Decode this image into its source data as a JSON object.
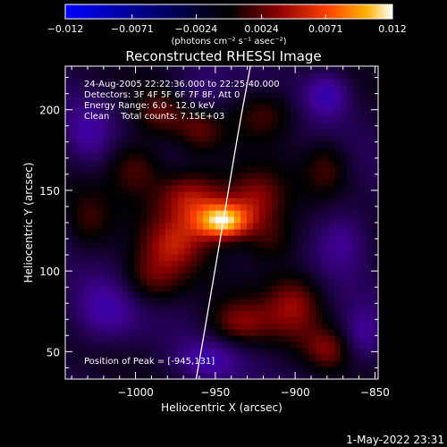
{
  "chart_data": {
    "type": "heatmap",
    "title": "Reconstructed RHESSI Image",
    "xlabel": "Heliocentric X (arcsec)",
    "ylabel": "Heliocentric Y (arcsec)",
    "xlim": [
      -1044,
      -848
    ],
    "ylim": [
      33,
      227
    ],
    "xticks": [
      -1000,
      -950,
      -900,
      -850
    ],
    "xtick_labels": [
      "−1000",
      "−950",
      "−900",
      "−850"
    ],
    "yticks": [
      50,
      100,
      150,
      200
    ],
    "ytick_labels": [
      "50",
      "100",
      "150",
      "200"
    ],
    "colorbar": {
      "range": [
        -0.012,
        0.012
      ],
      "ticks": [
        -0.012,
        -0.0071,
        -0.0024,
        0.0024,
        0.0071,
        0.012
      ],
      "tick_labels": [
        "−0.012",
        "−0.0071",
        "−0.0024",
        "0.0024",
        "0.0071",
        "0.012"
      ],
      "unit_label": "(photons cm⁻² s⁻¹ asec⁻²)"
    },
    "annotations": {
      "time_range": "24-Aug-2005 22:22:36.000 to 22:25:40.000",
      "detectors": "Detectors: 3F 4F 5F 6F 7F 8F, Att 0",
      "energy_range": "Energy Range: 6.0 - 12.0 keV",
      "clean_line": "Clean    Total counts: 7.15E+03",
      "peak": "Position of Peak = [-945,131]"
    },
    "peak": {
      "x": -945,
      "y": 131,
      "value": 0.012
    },
    "sources": [
      {
        "x": -945,
        "y": 131,
        "amp": 0.0125,
        "sx": 12,
        "sy": 8
      },
      {
        "x": -965,
        "y": 146,
        "amp": 0.0075,
        "sx": 16,
        "sy": 12
      },
      {
        "x": -925,
        "y": 145,
        "amp": 0.0055,
        "sx": 13,
        "sy": 12
      },
      {
        "x": -975,
        "y": 118,
        "amp": 0.0055,
        "sx": 14,
        "sy": 12
      },
      {
        "x": -915,
        "y": 120,
        "amp": 0.004,
        "sx": 12,
        "sy": 11
      },
      {
        "x": -990,
        "y": 95,
        "amp": 0.0045,
        "sx": 14,
        "sy": 12
      },
      {
        "x": -900,
        "y": 80,
        "amp": 0.0055,
        "sx": 13,
        "sy": 15
      },
      {
        "x": -935,
        "y": 68,
        "amp": 0.005,
        "sx": 14,
        "sy": 10
      },
      {
        "x": -880,
        "y": 52,
        "amp": 0.004,
        "sx": 10,
        "sy": 9
      },
      {
        "x": -1000,
        "y": 165,
        "amp": 0.0045,
        "sx": 12,
        "sy": 12
      },
      {
        "x": -985,
        "y": 198,
        "amp": 0.004,
        "sx": 12,
        "sy": 10
      },
      {
        "x": -960,
        "y": 188,
        "amp": 0.0035,
        "sx": 10,
        "sy": 10
      },
      {
        "x": -918,
        "y": 198,
        "amp": 0.004,
        "sx": 14,
        "sy": 11
      },
      {
        "x": -880,
        "y": 165,
        "amp": 0.0035,
        "sx": 10,
        "sy": 12
      },
      {
        "x": -1030,
        "y": 130,
        "amp": 0.003,
        "sx": 10,
        "sy": 14
      },
      {
        "x": -1020,
        "y": 75,
        "amp": -0.0045,
        "sx": 15,
        "sy": 14
      },
      {
        "x": -1030,
        "y": 185,
        "amp": -0.0035,
        "sx": 10,
        "sy": 14
      },
      {
        "x": -870,
        "y": 120,
        "amp": -0.004,
        "sx": 12,
        "sy": 15
      },
      {
        "x": -880,
        "y": 210,
        "amp": -0.005,
        "sx": 10,
        "sy": 10
      },
      {
        "x": -955,
        "y": 45,
        "amp": -0.004,
        "sx": 14,
        "sy": 9
      },
      {
        "x": -960,
        "y": 210,
        "amp": -0.003,
        "sx": 12,
        "sy": 10
      },
      {
        "x": -858,
        "y": 60,
        "amp": -0.0035,
        "sx": 8,
        "sy": 12
      }
    ],
    "limb_curve": [
      [
        -962,
        33
      ],
      [
        -952,
        90
      ],
      [
        -945,
        131
      ],
      [
        -935,
        190
      ],
      [
        -928,
        227
      ]
    ],
    "grid": false
  },
  "footer": {
    "date": "1-May-2022 23:31"
  }
}
